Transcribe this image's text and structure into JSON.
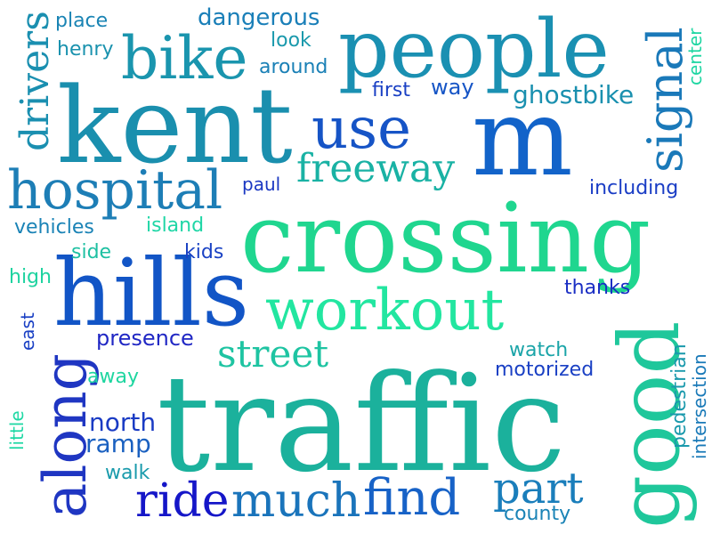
{
  "words": [
    {
      "text": "crossing",
      "color": "#1fd68f"
    },
    {
      "text": "traffic",
      "color": "#1bb19c"
    },
    {
      "text": "kent",
      "color": "#1a8fae"
    },
    {
      "text": "m",
      "color": "#1263c9"
    },
    {
      "text": "people",
      "color": "#1a90b2"
    },
    {
      "text": "hills",
      "color": "#1255c6"
    },
    {
      "text": "good",
      "color": "#1fc79b"
    },
    {
      "text": "hospital",
      "color": "#1d7eb6"
    },
    {
      "text": "along",
      "color": "#1f36c2"
    },
    {
      "text": "workout",
      "color": "#22e6a0"
    },
    {
      "text": "bike",
      "color": "#1a95ae"
    },
    {
      "text": "signal",
      "color": "#1a79b9"
    },
    {
      "text": "use",
      "color": "#1654c6"
    },
    {
      "text": "freeway",
      "color": "#19b2a4"
    },
    {
      "text": "find",
      "color": "#1762c7"
    },
    {
      "text": "ride",
      "color": "#1516c8"
    },
    {
      "text": "much",
      "color": "#1a74bb"
    },
    {
      "text": "part",
      "color": "#1a7ebb"
    },
    {
      "text": "street",
      "color": "#1ec4a2"
    },
    {
      "text": "drivers",
      "color": "#1a8fb0"
    },
    {
      "text": "ghostbike",
      "color": "#1a90af"
    },
    {
      "text": "presence",
      "color": "#2027c4"
    },
    {
      "text": "dangerous",
      "color": "#1a7fb8"
    },
    {
      "text": "look",
      "color": "#1a99ac"
    },
    {
      "text": "around",
      "color": "#1a80b6"
    },
    {
      "text": "henry",
      "color": "#1a92ae"
    },
    {
      "text": "place",
      "color": "#1a84b4"
    },
    {
      "text": "first",
      "color": "#1a40c4"
    },
    {
      "text": "way",
      "color": "#1655c6"
    },
    {
      "text": "center",
      "color": "#1ed6a2"
    },
    {
      "text": "including",
      "color": "#1a3dc5"
    },
    {
      "text": "paul",
      "color": "#1a37c2"
    },
    {
      "text": "vehicles",
      "color": "#1a83b6"
    },
    {
      "text": "island",
      "color": "#1fd6a6"
    },
    {
      "text": "side",
      "color": "#1ec0a2"
    },
    {
      "text": "kids",
      "color": "#1a42c4"
    },
    {
      "text": "high",
      "color": "#1fd3a0"
    },
    {
      "text": "east",
      "color": "#1a40c4"
    },
    {
      "text": "thanks",
      "color": "#1a2ec4"
    },
    {
      "text": "watch",
      "color": "#1aa4a8"
    },
    {
      "text": "motorized",
      "color": "#1a40c4"
    },
    {
      "text": "pedestrian",
      "color": "#1a99ac"
    },
    {
      "text": "intersection",
      "color": "#1a7ab8"
    },
    {
      "text": "away",
      "color": "#1fd6a0"
    },
    {
      "text": "north",
      "color": "#1a3bc4"
    },
    {
      "text": "ramp",
      "color": "#1a60c0"
    },
    {
      "text": "little",
      "color": "#1ed8a4"
    },
    {
      "text": "walk",
      "color": "#1a9bac"
    },
    {
      "text": "county",
      "color": "#1a83b6"
    }
  ]
}
